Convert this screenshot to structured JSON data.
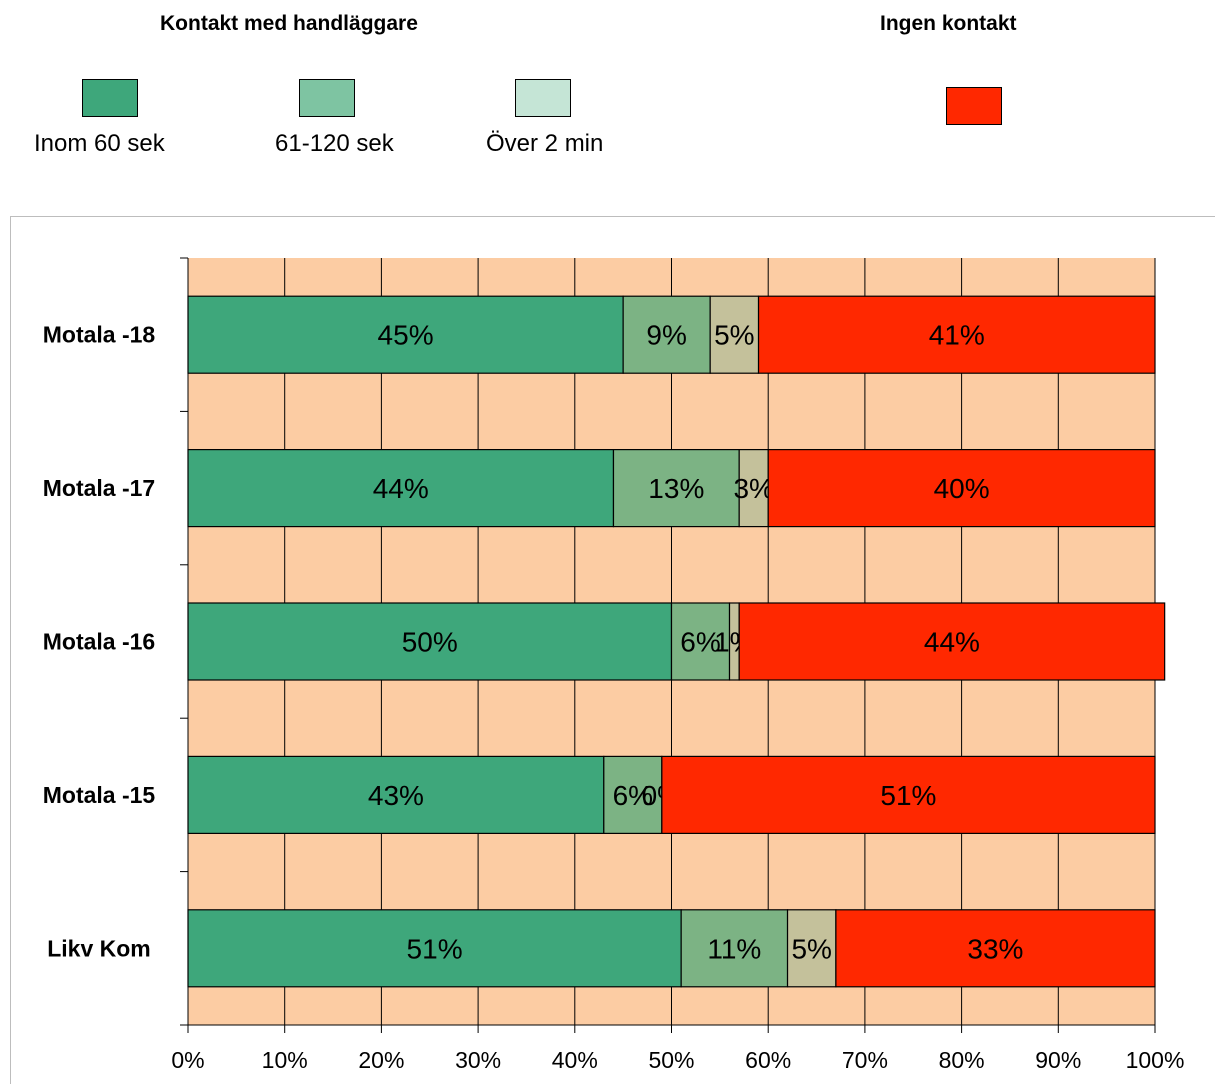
{
  "legend": {
    "groups": [
      {
        "title": "Kontakt med handläggare"
      },
      {
        "title": "Ingen kontakt"
      }
    ],
    "items": [
      {
        "label": "Inom 60 sek",
        "color": "#3ea77b"
      },
      {
        "label": "61-120 sek",
        "color": "#7ec4a2"
      },
      {
        "label": "Över 2 min",
        "color": "#c5e5d6"
      },
      {
        "label": "",
        "color": "#ff2800"
      }
    ]
  },
  "chart_data": {
    "type": "bar",
    "orientation": "horizontal",
    "stacked": true,
    "percent_stacked": true,
    "categories": [
      "Motala -18",
      "Motala -17",
      "Motala -16",
      "Motala -15",
      "Likv Kom"
    ],
    "series": [
      {
        "name": "Inom 60 sek",
        "color": "#3ea77b",
        "values": [
          45,
          44,
          50,
          43,
          51
        ],
        "labels": [
          "45%",
          "44%",
          "50%",
          "43%",
          "51%"
        ]
      },
      {
        "name": "61-120 sek",
        "color": "#7cb384",
        "values": [
          9,
          13,
          6,
          6,
          11
        ],
        "labels": [
          "9%",
          "13%",
          "6%",
          "6%",
          "11%"
        ]
      },
      {
        "name": "Över 2 min",
        "color": "#c4c19b",
        "values": [
          5,
          3,
          1,
          0,
          5
        ],
        "labels": [
          "5%",
          "3%",
          "1%",
          "0%",
          "5%"
        ]
      },
      {
        "name": "Ingen kontakt",
        "color": "#ff2800",
        "values": [
          41,
          40,
          44,
          51,
          33
        ],
        "labels": [
          "41%",
          "40%",
          "44%",
          "51%",
          "33%"
        ]
      }
    ],
    "xlim": [
      0,
      100
    ],
    "xticks": [
      "0%",
      "10%",
      "20%",
      "30%",
      "40%",
      "50%",
      "60%",
      "70%",
      "80%",
      "90%",
      "100%"
    ],
    "plot_background": "#fccca3",
    "grid": true,
    "legend_position": "top"
  }
}
